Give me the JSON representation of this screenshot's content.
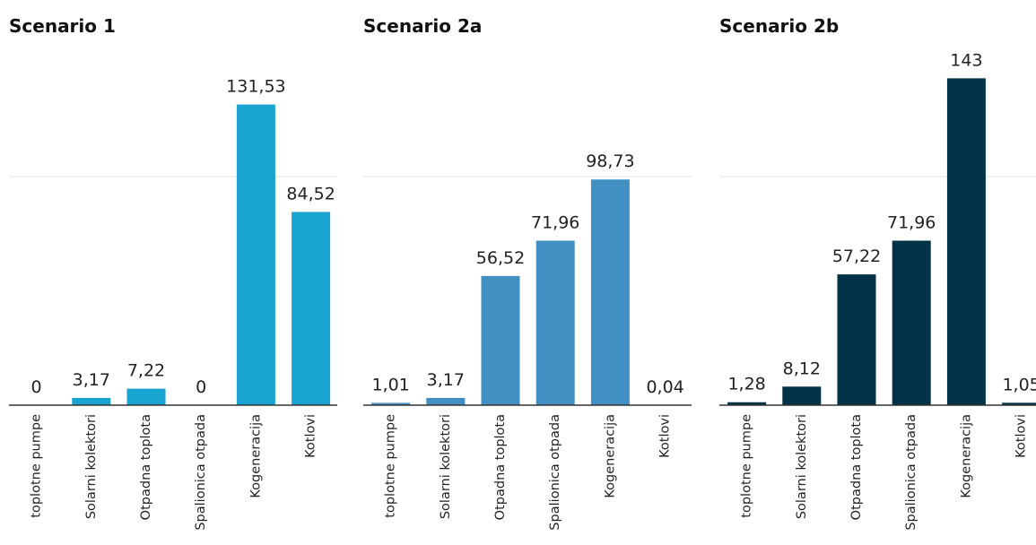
{
  "chart_data": [
    {
      "type": "bar",
      "title": "Scenario 1",
      "color": "#18a3d1",
      "categories": [
        "toplotne pumpe",
        "Solarni kolektori",
        "Otpadna toplota",
        "Spalionica otpada",
        "Kogeneracija",
        "Kotlovi"
      ],
      "values": [
        0,
        3.17,
        7.22,
        0,
        131.53,
        84.52
      ],
      "value_labels": [
        "0",
        "3,17",
        "7,22",
        "0",
        "131,53",
        "84,52"
      ],
      "ylim": [
        0,
        160
      ],
      "yticks": [
        0,
        100
      ],
      "grid": true
    },
    {
      "type": "bar",
      "title": "Scenario 2a",
      "color": "#428fc3",
      "categories": [
        "toplotne pumpe",
        "Solarni kolektori",
        "Otpadna toplota",
        "Spalionica otpada",
        "Kogeneracija",
        "Kotlovi"
      ],
      "values": [
        1.01,
        3.17,
        56.52,
        71.96,
        98.73,
        0.04
      ],
      "value_labels": [
        "1,01",
        "3,17",
        "56,52",
        "71,96",
        "98,73",
        "0,04"
      ],
      "ylim": [
        0,
        160
      ],
      "yticks": [
        0,
        100
      ],
      "grid": true
    },
    {
      "type": "bar",
      "title": "Scenario 2b",
      "color": "#023248",
      "categories": [
        "toplotne pumpe",
        "Solarni kolektori",
        "Otpadna toplota",
        "Spalionica otpada",
        "Kogeneracija",
        "Kotlovi"
      ],
      "values": [
        1.28,
        8.12,
        57.22,
        71.96,
        143,
        1.05
      ],
      "value_labels": [
        "1,28",
        "8,12",
        "57,22",
        "71,96",
        "143",
        "1,05"
      ],
      "ylim": [
        0,
        160
      ],
      "yticks": [
        0,
        100
      ],
      "grid": true
    }
  ]
}
